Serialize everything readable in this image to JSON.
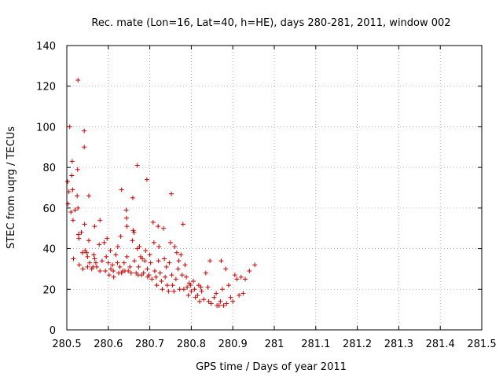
{
  "chart_data": {
    "type": "scatter",
    "title": "Rec. mate (Lon=16, Lat=40, h=HE), days 280-281, 2011, window 002",
    "xlabel": "GPS time / Days of year 2011",
    "ylabel": "STEC from uqrg / TECUs",
    "xlim": [
      280.5,
      281.5
    ],
    "ylim": [
      0,
      140
    ],
    "xticks": [
      280.5,
      280.6,
      280.7,
      280.8,
      280.9,
      281,
      281.1,
      281.2,
      281.3,
      281.4,
      281.5
    ],
    "xtick_labels": [
      "280.5",
      "280.6",
      "280.7",
      "280.8",
      "280.9",
      "281",
      "281.1",
      "281.2",
      "281.3",
      "281.4",
      "281.5"
    ],
    "yticks": [
      0,
      20,
      40,
      60,
      80,
      100,
      120,
      140
    ],
    "ytick_labels": [
      "0",
      "20",
      "40",
      "60",
      "80",
      "100",
      "120",
      "140"
    ],
    "grid": true,
    "marker": "+",
    "color": "#cc0000",
    "series": [
      {
        "name": "STEC",
        "points": [
          [
            280.502,
            73
          ],
          [
            280.503,
            62
          ],
          [
            280.505,
            68
          ],
          [
            280.507,
            100
          ],
          [
            280.51,
            58
          ],
          [
            280.512,
            76
          ],
          [
            280.513,
            83
          ],
          [
            280.514,
            69
          ],
          [
            280.515,
            54
          ],
          [
            280.516,
            35
          ],
          [
            280.52,
            59
          ],
          [
            280.525,
            66
          ],
          [
            280.526,
            79
          ],
          [
            280.527,
            60
          ],
          [
            280.527,
            123
          ],
          [
            280.528,
            47
          ],
          [
            280.529,
            45
          ],
          [
            280.53,
            32
          ],
          [
            280.535,
            48
          ],
          [
            280.538,
            38
          ],
          [
            280.539,
            30
          ],
          [
            280.542,
            98
          ],
          [
            280.542,
            90
          ],
          [
            280.543,
            52
          ],
          [
            280.544,
            39
          ],
          [
            280.548,
            38
          ],
          [
            280.55,
            36
          ],
          [
            280.55,
            31
          ],
          [
            280.553,
            66
          ],
          [
            280.553,
            44
          ],
          [
            280.555,
            33
          ],
          [
            280.56,
            30
          ],
          [
            280.563,
            31
          ],
          [
            280.565,
            37
          ],
          [
            280.567,
            51
          ],
          [
            280.567,
            35
          ],
          [
            280.57,
            33
          ],
          [
            280.572,
            31
          ],
          [
            280.578,
            42
          ],
          [
            280.58,
            29
          ],
          [
            280.58,
            54
          ],
          [
            280.585,
            34
          ],
          [
            280.59,
            43
          ],
          [
            280.593,
            29
          ],
          [
            280.595,
            36
          ],
          [
            280.597,
            45
          ],
          [
            280.6,
            33
          ],
          [
            280.602,
            27
          ],
          [
            280.605,
            39
          ],
          [
            280.606,
            30
          ],
          [
            280.61,
            32
          ],
          [
            280.612,
            29
          ],
          [
            280.613,
            26
          ],
          [
            280.618,
            37
          ],
          [
            280.622,
            33
          ],
          [
            280.623,
            41
          ],
          [
            280.625,
            28
          ],
          [
            280.628,
            31
          ],
          [
            280.63,
            46
          ],
          [
            280.632,
            69
          ],
          [
            280.632,
            28
          ],
          [
            280.635,
            29
          ],
          [
            280.638,
            33
          ],
          [
            280.64,
            29
          ],
          [
            280.643,
            59
          ],
          [
            280.644,
            55
          ],
          [
            280.645,
            51
          ],
          [
            280.645,
            36
          ],
          [
            280.648,
            29
          ],
          [
            280.652,
            31
          ],
          [
            280.655,
            28
          ],
          [
            280.658,
            44
          ],
          [
            280.659,
            65
          ],
          [
            280.66,
            49
          ],
          [
            280.662,
            48
          ],
          [
            280.663,
            34
          ],
          [
            280.667,
            28
          ],
          [
            280.67,
            81
          ],
          [
            280.67,
            40
          ],
          [
            280.672,
            27
          ],
          [
            280.673,
            31
          ],
          [
            280.675,
            41
          ],
          [
            280.678,
            36
          ],
          [
            280.68,
            27
          ],
          [
            280.682,
            35
          ],
          [
            280.685,
            28
          ],
          [
            280.688,
            34
          ],
          [
            280.69,
            39
          ],
          [
            280.693,
            74
          ],
          [
            280.694,
            30
          ],
          [
            280.695,
            26
          ],
          [
            280.698,
            27
          ],
          [
            280.7,
            37
          ],
          [
            280.702,
            33
          ],
          [
            280.705,
            25
          ],
          [
            280.708,
            53
          ],
          [
            280.71,
            43
          ],
          [
            280.712,
            29
          ],
          [
            280.715,
            26
          ],
          [
            280.717,
            22
          ],
          [
            280.72,
            51
          ],
          [
            280.721,
            34
          ],
          [
            280.722,
            41
          ],
          [
            280.725,
            28
          ],
          [
            280.728,
            24
          ],
          [
            280.73,
            20
          ],
          [
            280.733,
            50
          ],
          [
            280.735,
            35
          ],
          [
            280.737,
            26
          ],
          [
            280.74,
            31
          ],
          [
            280.742,
            22
          ],
          [
            280.745,
            19
          ],
          [
            280.747,
            33
          ],
          [
            280.75,
            43
          ],
          [
            280.752,
            67
          ],
          [
            280.753,
            27
          ],
          [
            280.755,
            22
          ],
          [
            280.758,
            19
          ],
          [
            280.76,
            41
          ],
          [
            280.763,
            25
          ],
          [
            280.765,
            38
          ],
          [
            280.768,
            30
          ],
          [
            280.77,
            34
          ],
          [
            280.772,
            20
          ],
          [
            280.775,
            37
          ],
          [
            280.778,
            27
          ],
          [
            280.78,
            52
          ],
          [
            280.782,
            20
          ],
          [
            280.785,
            32
          ],
          [
            280.788,
            26
          ],
          [
            280.79,
            21
          ],
          [
            280.793,
            17
          ],
          [
            280.795,
            23
          ],
          [
            280.798,
            22
          ],
          [
            280.8,
            19
          ],
          [
            280.805,
            24
          ],
          [
            280.808,
            20
          ],
          [
            280.81,
            16
          ],
          [
            280.815,
            17
          ],
          [
            280.818,
            22
          ],
          [
            280.82,
            14
          ],
          [
            280.823,
            21
          ],
          [
            280.825,
            19
          ],
          [
            280.83,
            15
          ],
          [
            280.835,
            28
          ],
          [
            280.84,
            21
          ],
          [
            280.842,
            14
          ],
          [
            280.845,
            34
          ],
          [
            280.848,
            13
          ],
          [
            280.855,
            16
          ],
          [
            280.86,
            18
          ],
          [
            280.862,
            12
          ],
          [
            280.867,
            12
          ],
          [
            280.87,
            14
          ],
          [
            280.872,
            34
          ],
          [
            280.875,
            20
          ],
          [
            280.878,
            12
          ],
          [
            280.883,
            30
          ],
          [
            280.885,
            13
          ],
          [
            280.89,
            22
          ],
          [
            280.895,
            16
          ],
          [
            280.9,
            14
          ],
          [
            280.905,
            27
          ],
          [
            280.91,
            25
          ],
          [
            280.915,
            17
          ],
          [
            280.92,
            26
          ],
          [
            280.925,
            18
          ],
          [
            280.93,
            25
          ],
          [
            280.94,
            29
          ],
          [
            280.953,
            32
          ]
        ]
      }
    ]
  }
}
